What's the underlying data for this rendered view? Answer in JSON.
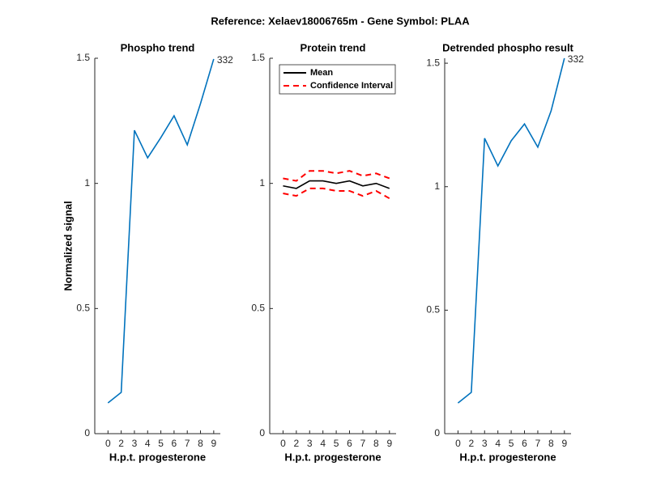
{
  "title": "Reference:  Xelaev18006765m - Gene Symbol:  PLAA",
  "chart_data": [
    {
      "type": "line",
      "title": "Phospho trend",
      "xlabel": "H.p.t. progesterone",
      "ylabel": "Normalized signal",
      "categories": [
        "0",
        "2",
        "3",
        "4",
        "5",
        "6",
        "7",
        "8",
        "9"
      ],
      "ylim": [
        0,
        1.5
      ],
      "yticks": [
        0,
        0.5,
        1,
        1.5
      ],
      "series": [
        {
          "name": "Phospho",
          "color": "#0072bd",
          "values": [
            0.123,
            0.165,
            1.212,
            1.102,
            1.183,
            1.27,
            1.154,
            1.319,
            1.497
          ]
        }
      ],
      "annotation": "332"
    },
    {
      "type": "line",
      "title": "Protein trend",
      "xlabel": "H.p.t. progesterone",
      "categories": [
        "0",
        "2",
        "3",
        "4",
        "5",
        "6",
        "7",
        "8",
        "9"
      ],
      "ylim": [
        0,
        1.5
      ],
      "yticks": [
        0,
        0.5,
        1,
        1.5
      ],
      "legend": "northwest",
      "series": [
        {
          "name": "Mean",
          "color": "#000000",
          "values": [
            0.99,
            0.98,
            1.01,
            1.01,
            1.0,
            1.01,
            0.99,
            1.0,
            0.98
          ]
        },
        {
          "name": "Confidence Interval",
          "color": "#ff0000",
          "dashed": true,
          "values": [
            1.02,
            1.01,
            1.05,
            1.05,
            1.04,
            1.05,
            1.03,
            1.04,
            1.02
          ]
        },
        {
          "name": "Confidence Interval",
          "color": "#ff0000",
          "dashed": true,
          "values": [
            0.96,
            0.95,
            0.98,
            0.98,
            0.97,
            0.97,
            0.95,
            0.97,
            0.94
          ]
        }
      ]
    },
    {
      "type": "line",
      "title": "Detrended phospho result",
      "xlabel": "H.p.t. progesterone",
      "categories": [
        "0",
        "2",
        "3",
        "4",
        "5",
        "6",
        "7",
        "8",
        "9"
      ],
      "ylim": [
        0,
        1.52
      ],
      "yticks": [
        0,
        0.5,
        1,
        1.5
      ],
      "series": [
        {
          "name": "Detrended",
          "color": "#0072bd",
          "values": [
            0.124,
            0.167,
            1.196,
            1.084,
            1.186,
            1.254,
            1.16,
            1.307,
            1.52
          ]
        }
      ],
      "annotation": "332"
    }
  ]
}
